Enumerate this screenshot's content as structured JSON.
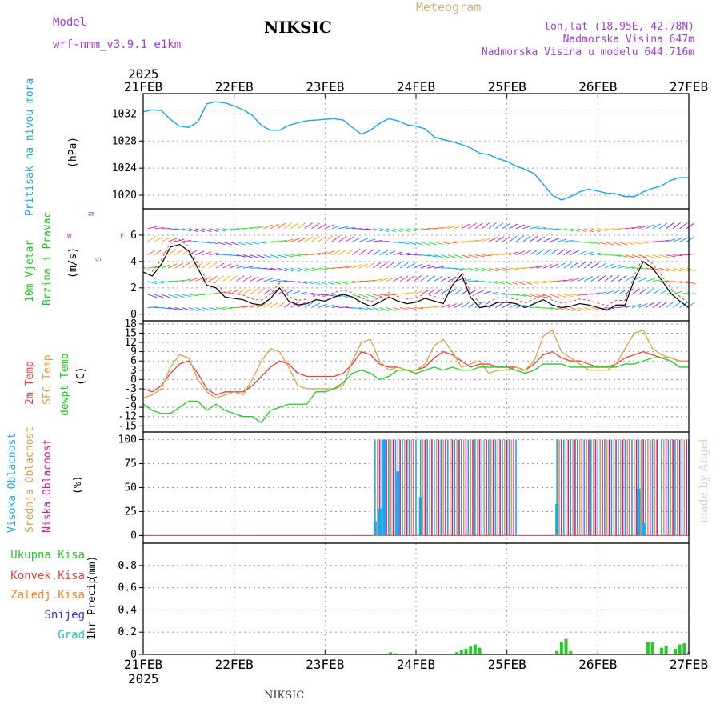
{
  "header": {
    "model_label": "Model",
    "model_name": "wrf-nmm_v3.9.1 e1km",
    "title": "NIKSIC",
    "meteogram": "Meteogram",
    "lonlat": "lon,lat (18.95E, 42.78N)",
    "altitude": "Nadmorska Visina 647m",
    "model_altitude": "Nadmorska Visina u modelu 644.716m",
    "footer": "NIKSIC",
    "watermark": "made by Angel"
  },
  "colors": {
    "pressure": "#1aa6e8",
    "temp2m": "#e8403a",
    "sfc": "#d9a14a",
    "dewpt": "#22cc22",
    "high_cloud": "#1aa6e8",
    "mid_cloud": "#d9a14a",
    "low_cloud": "#cc2299",
    "wind_label": "#22cc22",
    "compass": "#b050d0",
    "title_gray": "#c0a050",
    "header_purple": "#a040d0"
  },
  "chart_data": [
    {
      "panel": "pressure",
      "type": "line",
      "y_title": "Pritisak na nivou mora",
      "unit": "(hPa)",
      "x_labels": [
        "21FEB",
        "22FEB",
        "23FEB",
        "24FEB",
        "25FEB",
        "26FEB",
        "27FEB"
      ],
      "year": "2025",
      "ylim": [
        1018,
        1035
      ],
      "y_ticks": [
        1020,
        1024,
        1028,
        1032
      ],
      "x": [
        0,
        0.1,
        0.2,
        0.3,
        0.4,
        0.5,
        0.6,
        0.7,
        0.8,
        0.9,
        1.0,
        1.1,
        1.2,
        1.3,
        1.4,
        1.5,
        1.6,
        1.7,
        1.8,
        1.9,
        2.0,
        2.1,
        2.2,
        2.3,
        2.4,
        2.5,
        2.6,
        2.7,
        2.8,
        2.9,
        3.0,
        3.1,
        3.2,
        3.3,
        3.4,
        3.5,
        3.6,
        3.7,
        3.8,
        3.9,
        4.0,
        4.1,
        4.2,
        4.3,
        4.4,
        4.5,
        4.6,
        4.7,
        4.8,
        4.9,
        5.0,
        5.1,
        5.2,
        5.3,
        5.4,
        5.5,
        5.6,
        5.7,
        5.8,
        5.9,
        6.0
      ],
      "values": [
        1032.3,
        1032.6,
        1032.5,
        1031.2,
        1030.2,
        1030.0,
        1030.8,
        1033.5,
        1033.8,
        1033.6,
        1033.2,
        1032.6,
        1031.8,
        1030.3,
        1029.6,
        1029.6,
        1030.3,
        1030.7,
        1031.0,
        1031.1,
        1031.2,
        1031.3,
        1031.1,
        1030.0,
        1029.0,
        1029.6,
        1030.6,
        1031.3,
        1031.0,
        1030.4,
        1030.2,
        1029.8,
        1028.6,
        1028.2,
        1027.9,
        1027.5,
        1027.0,
        1026.2,
        1026.0,
        1025.4,
        1025.0,
        1024.3,
        1023.8,
        1023.2,
        1021.6,
        1020.0,
        1019.3,
        1019.8,
        1020.5,
        1020.9,
        1020.6,
        1020.3,
        1020.2,
        1019.8,
        1019.8,
        1020.5,
        1021.0,
        1021.4,
        1022.2,
        1022.6,
        1022.6
      ]
    },
    {
      "panel": "wind",
      "type": "line",
      "y_title": "10m Vjetar Brzina i Pravac",
      "unit": "(m/s)",
      "compass_labels": [
        "N",
        "W",
        "E",
        "S"
      ],
      "ylim": [
        -0.5,
        8
      ],
      "y_ticks": [
        0,
        2,
        4,
        6
      ],
      "series": [
        {
          "name": "speed",
          "x": [
            0,
            0.1,
            0.2,
            0.3,
            0.4,
            0.5,
            0.6,
            0.7,
            0.8,
            0.9,
            1.0,
            1.1,
            1.2,
            1.3,
            1.4,
            1.5,
            1.6,
            1.7,
            1.8,
            1.9,
            2.0,
            2.1,
            2.2,
            2.3,
            2.4,
            2.5,
            2.6,
            2.7,
            2.8,
            2.9,
            3.0,
            3.1,
            3.2,
            3.3,
            3.4,
            3.5,
            3.6,
            3.7,
            3.8,
            3.9,
            4.0,
            4.1,
            4.2,
            4.3,
            4.4,
            4.5,
            4.6,
            4.7,
            4.8,
            4.9,
            5.0,
            5.1,
            5.2,
            5.3,
            5.4,
            5.5,
            5.6,
            5.7,
            5.8,
            5.9,
            6.0
          ],
          "values": [
            3.2,
            2.9,
            3.8,
            5.1,
            5.3,
            4.8,
            3.5,
            2.2,
            2.0,
            1.3,
            1.2,
            1.1,
            0.8,
            0.7,
            1.2,
            2.0,
            1.0,
            0.7,
            0.8,
            1.1,
            1.0,
            1.3,
            1.5,
            1.3,
            0.9,
            0.6,
            0.9,
            1.3,
            1.0,
            0.8,
            0.9,
            1.2,
            1.0,
            0.8,
            2.2,
            3.0,
            1.3,
            0.5,
            0.6,
            0.9,
            0.9,
            0.8,
            0.5,
            0.8,
            1.1,
            0.7,
            0.5,
            0.6,
            0.8,
            0.7,
            0.5,
            0.3,
            0.7,
            0.7,
            2.6,
            4.0,
            3.5,
            2.6,
            1.6,
            1.0,
            0.5
          ]
        }
      ]
    },
    {
      "panel": "temperature",
      "type": "line",
      "y_title_2m": "2m Temp",
      "y_title_sfc": "SFC Temp",
      "y_title_dew": "dewpt Temp",
      "unit": "(C)",
      "ylim": [
        -17,
        19
      ],
      "y_ticks": [
        18,
        15,
        12,
        9,
        6,
        3,
        0,
        -3,
        -6,
        -9,
        -12,
        -15
      ],
      "x": [
        0,
        0.1,
        0.2,
        0.3,
        0.4,
        0.5,
        0.6,
        0.7,
        0.8,
        0.9,
        1.0,
        1.1,
        1.2,
        1.3,
        1.4,
        1.5,
        1.6,
        1.7,
        1.8,
        1.9,
        2.0,
        2.1,
        2.2,
        2.3,
        2.4,
        2.5,
        2.6,
        2.7,
        2.8,
        2.9,
        3.0,
        3.1,
        3.2,
        3.3,
        3.4,
        3.5,
        3.6,
        3.7,
        3.8,
        3.9,
        4.0,
        4.1,
        4.2,
        4.3,
        4.4,
        4.5,
        4.6,
        4.7,
        4.8,
        4.9,
        5.0,
        5.1,
        5.2,
        5.3,
        5.4,
        5.5,
        5.6,
        5.7,
        5.8,
        5.9,
        6.0
      ],
      "series": [
        {
          "name": "2m Temp",
          "values": [
            -3,
            -4,
            -2,
            2,
            5,
            6,
            2,
            -3,
            -5,
            -4,
            -4,
            -4,
            -2,
            1,
            4,
            6,
            5,
            2,
            1,
            1,
            1,
            1,
            2,
            5,
            9,
            8,
            5,
            4,
            4,
            3,
            3,
            4,
            7,
            9,
            8,
            6,
            4,
            5,
            5,
            4,
            4,
            4,
            3,
            5,
            8,
            9,
            7,
            6,
            6,
            5,
            4,
            4,
            5,
            7,
            8,
            9,
            8,
            7,
            7,
            6,
            6
          ]
        },
        {
          "name": "SFC Temp",
          "values": [
            -6,
            -5,
            -3,
            4,
            8,
            7,
            0,
            -4,
            -6,
            -5,
            -4,
            -5,
            0,
            6,
            10,
            9,
            4,
            -2,
            -3,
            -3,
            -3,
            -3,
            -2,
            6,
            12,
            13,
            6,
            3,
            4,
            3,
            3,
            5,
            11,
            13,
            9,
            4,
            5,
            6,
            2,
            3,
            3,
            4,
            3,
            6,
            14,
            16,
            9,
            7,
            5,
            3,
            3,
            3,
            5,
            10,
            15,
            16,
            10,
            8,
            7,
            6,
            6
          ]
        },
        {
          "name": "dewpt Temp",
          "values": [
            -8,
            -10,
            -11,
            -11,
            -9,
            -7,
            -7,
            -10,
            -8,
            -10,
            -11,
            -12,
            -12,
            -14,
            -10,
            -9,
            -8,
            -8,
            -8,
            -4,
            -4,
            -3,
            -1,
            2,
            3,
            2,
            0,
            1,
            3,
            3,
            2,
            3,
            4,
            3,
            4,
            3,
            3,
            4,
            4,
            4,
            4,
            3,
            2,
            3,
            5,
            5,
            5,
            4,
            4,
            4,
            4,
            4,
            4,
            5,
            5,
            6,
            7,
            7,
            6,
            4,
            4
          ]
        }
      ]
    },
    {
      "panel": "cloud",
      "type": "bar",
      "y_title_high": "Visoka Oblacnost",
      "y_title_mid": "Srednja Oblacnost",
      "y_title_low": "Niska Oblacnost",
      "unit": "(%)",
      "ylim": [
        -8,
        108
      ],
      "y_ticks": [
        0,
        25,
        50,
        75,
        100
      ],
      "segments": [
        {
          "x0": 2.55,
          "x1": 3.0,
          "level": 100
        },
        {
          "x0": 3.05,
          "x1": 4.1,
          "level": 100
        },
        {
          "x0": 4.55,
          "x1": 5.65,
          "level": 100
        },
        {
          "x0": 5.7,
          "x1": 6.0,
          "level": 100
        }
      ],
      "low_bars": [
        {
          "x": 2.55,
          "value": 15
        },
        {
          "x": 2.6,
          "value": 28
        },
        {
          "x": 2.65,
          "value": 100
        },
        {
          "x": 2.8,
          "value": 67
        },
        {
          "x": 3.05,
          "value": 40
        },
        {
          "x": 4.55,
          "value": 33
        },
        {
          "x": 5.45,
          "value": 49
        },
        {
          "x": 5.5,
          "value": 13
        }
      ]
    },
    {
      "panel": "precip",
      "type": "bar",
      "y_title": "1hr Precip",
      "unit": "(mm)",
      "legend": [
        "Ukupna Kisa",
        "Konvek.Kisa",
        "Zaledj.Kisa",
        "Snijeg",
        "Grad"
      ],
      "legend_colors": [
        "#22cc22",
        "#e8403a",
        "#ff8020",
        "#3030e0",
        "#20c0c0"
      ],
      "ylim": [
        0,
        1.0
      ],
      "y_ticks": [
        0,
        0.2,
        0.4,
        0.6,
        0.8
      ],
      "bars": [
        {
          "x": 2.72,
          "value": 0.02
        },
        {
          "x": 2.77,
          "value": 0.01
        },
        {
          "x": 3.45,
          "value": 0.02
        },
        {
          "x": 3.5,
          "value": 0.04
        },
        {
          "x": 3.55,
          "value": 0.05
        },
        {
          "x": 3.6,
          "value": 0.07
        },
        {
          "x": 3.65,
          "value": 0.09
        },
        {
          "x": 3.7,
          "value": 0.06
        },
        {
          "x": 4.55,
          "value": 0.03
        },
        {
          "x": 4.6,
          "value": 0.11
        },
        {
          "x": 4.65,
          "value": 0.14
        },
        {
          "x": 4.7,
          "value": 0.03
        },
        {
          "x": 5.55,
          "value": 0.11
        },
        {
          "x": 5.6,
          "value": 0.11
        },
        {
          "x": 5.7,
          "value": 0.06
        },
        {
          "x": 5.75,
          "value": 0.08
        },
        {
          "x": 5.85,
          "value": 0.05
        },
        {
          "x": 5.9,
          "value": 0.09
        },
        {
          "x": 5.95,
          "value": 0.1
        },
        {
          "x": 6.0,
          "value": 0.02
        }
      ]
    }
  ]
}
